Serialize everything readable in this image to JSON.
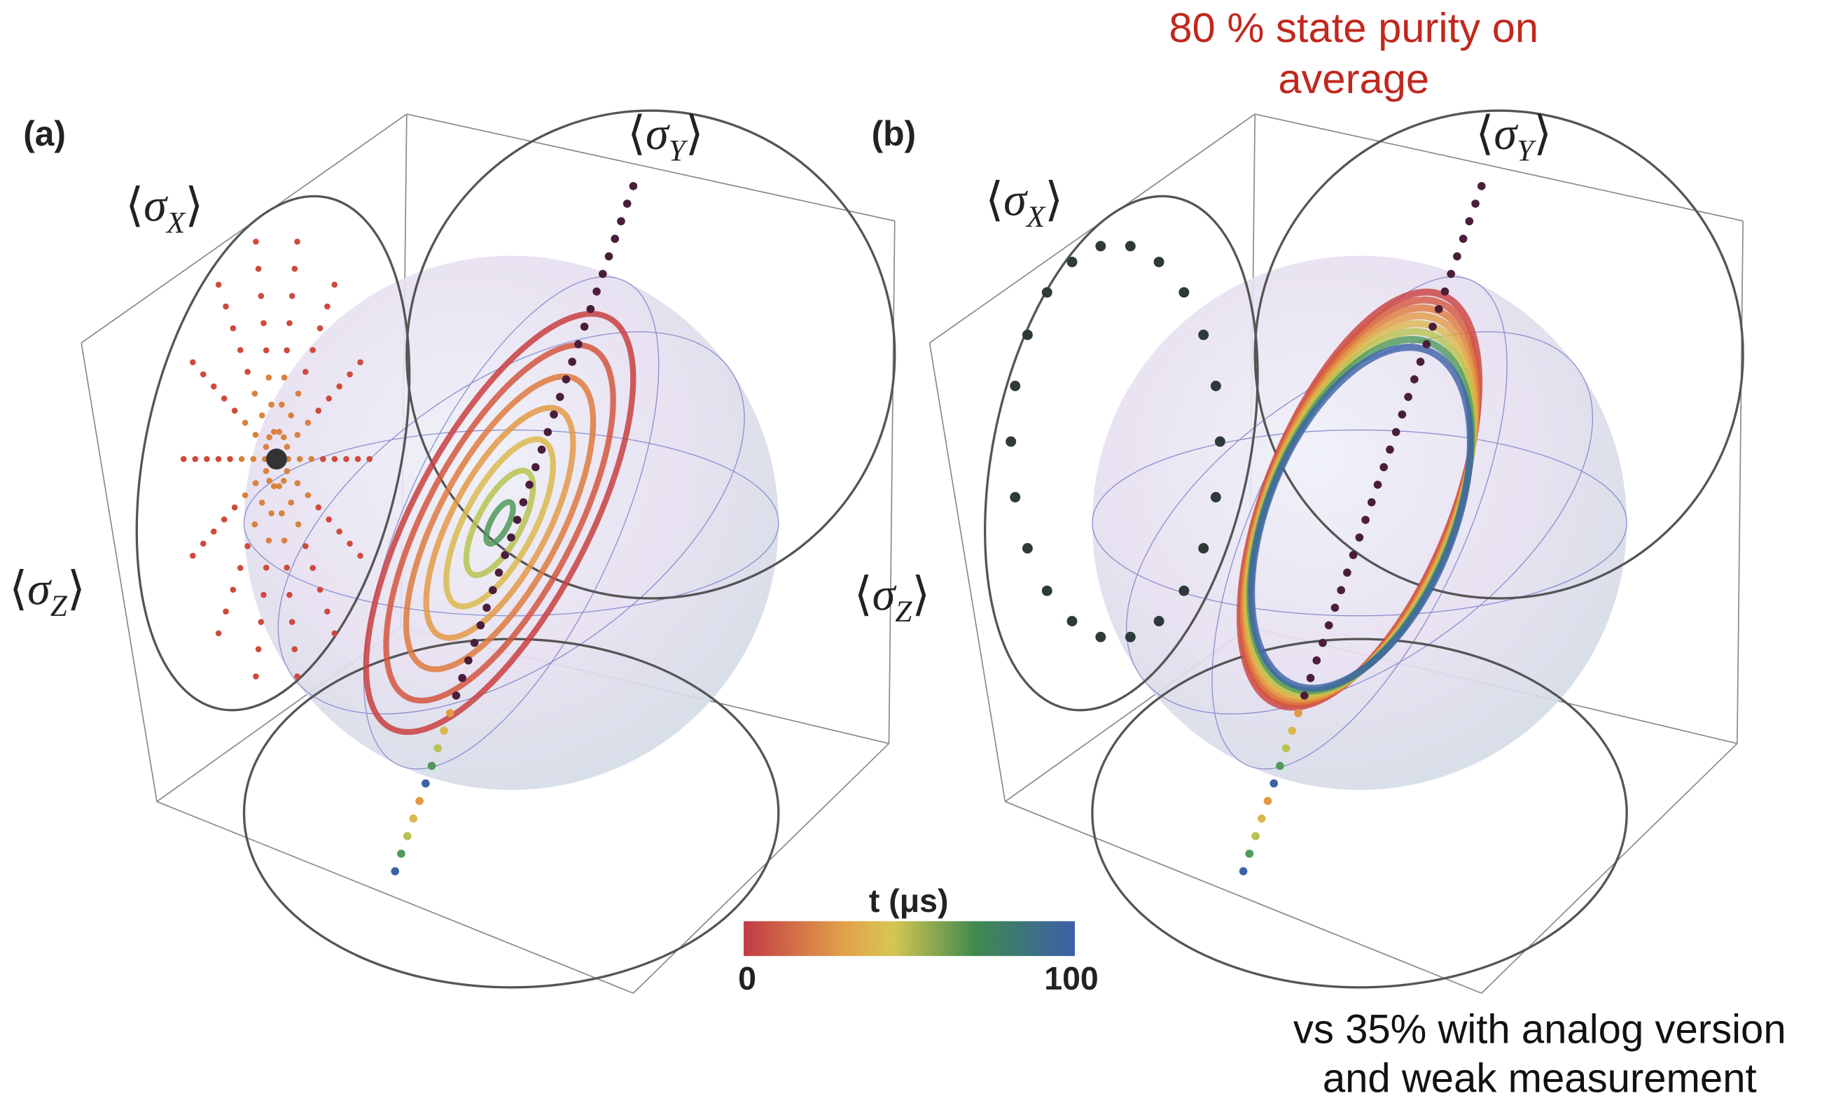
{
  "panels": [
    {
      "tag": "(a)",
      "axes": {
        "x": [
          "⟨",
          "σ",
          "X",
          "⟩"
        ],
        "y": [
          "⟨",
          "σ",
          "Y",
          "⟩"
        ],
        "z": [
          "⟨",
          "σ",
          "Z",
          "⟩"
        ]
      }
    },
    {
      "tag": "(b)",
      "axes": {
        "x": [
          "⟨",
          "σ",
          "X",
          "⟩"
        ],
        "y": [
          "⟨",
          "σ",
          "Y",
          "⟩"
        ],
        "z": [
          "⟨",
          "σ",
          "Z",
          "⟩"
        ]
      }
    }
  ],
  "colorbar": {
    "title": "t (μs)",
    "ticks": [
      0,
      100
    ]
  },
  "annotations": {
    "top": [
      "80 % state purity on",
      "average"
    ],
    "bottom": [
      "vs 35% with analog version",
      "and weak measurement"
    ]
  }
}
